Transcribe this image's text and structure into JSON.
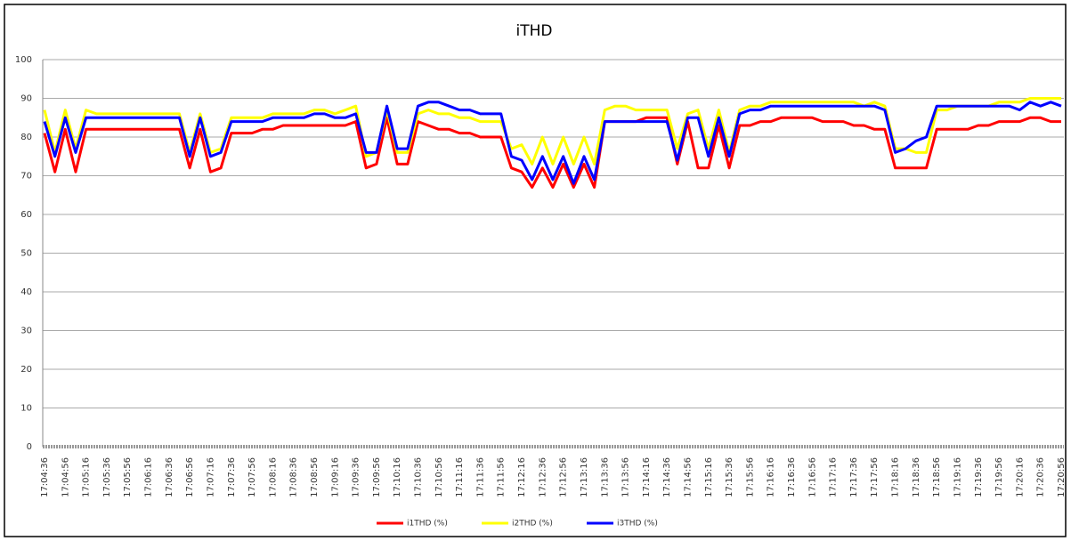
{
  "chart_data": {
    "type": "line",
    "title": "iTHD",
    "categories": [
      "17:04:36",
      null,
      "17:04:56",
      null,
      "17:05:16",
      null,
      "17:05:36",
      null,
      "17:05:56",
      null,
      "17:06:16",
      null,
      "17:06:36",
      null,
      "17:06:56",
      null,
      "17:07:16",
      null,
      "17:07:36",
      null,
      "17:07:56",
      null,
      "17:08:16",
      null,
      "17:08:36",
      null,
      "17:08:56",
      null,
      "17:09:16",
      null,
      "17:09:36",
      null,
      "17:09:56",
      null,
      "17:10:16",
      null,
      "17:10:36",
      null,
      "17:10:56",
      null,
      "17:11:16",
      null,
      "17:11:36",
      null,
      "17:11:56",
      null,
      "17:12:16",
      null,
      "17:12:36",
      null,
      "17:12:56",
      null,
      "17:13:16",
      null,
      "17:13:36",
      null,
      "17:13:56",
      null,
      "17:14:16",
      null,
      "17:14:36",
      null,
      "17:14:56",
      null,
      "17:15:16",
      null,
      "17:15:36",
      null,
      "17:15:56",
      null,
      "17:16:16",
      null,
      "17:16:36",
      null,
      "17:16:56",
      null,
      "17:17:16",
      null,
      "17:17:36",
      null,
      "17:17:56",
      null,
      "17:18:16",
      null,
      "17:18:36",
      null,
      "17:18:56",
      null,
      "17:19:16",
      null,
      "17:19:36",
      null,
      "17:19:56",
      null,
      "17:20:16",
      null,
      "17:20:36",
      null,
      "17:20:56"
    ],
    "series": [
      {
        "name": "i1THD (%)",
        "color": "#ff0000",
        "values": [
          81,
          71,
          82,
          71,
          82,
          82,
          82,
          82,
          82,
          82,
          82,
          82,
          82,
          82,
          72,
          82,
          71,
          72,
          81,
          81,
          81,
          82,
          82,
          83,
          83,
          83,
          83,
          83,
          83,
          83,
          84,
          72,
          73,
          85,
          73,
          73,
          84,
          83,
          82,
          82,
          81,
          81,
          80,
          80,
          80,
          72,
          71,
          67,
          72,
          67,
          73,
          67,
          73,
          67,
          84,
          84,
          84,
          84,
          85,
          85,
          85,
          73,
          84,
          72,
          72,
          83,
          72,
          83,
          83,
          84,
          84,
          85,
          85,
          85,
          85,
          84,
          84,
          84,
          83,
          83,
          82,
          82,
          72,
          72,
          72,
          72,
          82,
          82,
          82,
          82,
          83,
          83,
          84,
          84,
          84,
          85,
          85,
          84,
          84
        ]
      },
      {
        "name": "i2THD (%)",
        "color": "#ffff00",
        "values": [
          87,
          76,
          87,
          77,
          87,
          86,
          86,
          86,
          86,
          86,
          86,
          86,
          86,
          86,
          76,
          86,
          76,
          77,
          85,
          85,
          85,
          85,
          86,
          86,
          86,
          86,
          87,
          87,
          86,
          87,
          88,
          75,
          76,
          87,
          76,
          76,
          86,
          87,
          86,
          86,
          85,
          85,
          84,
          84,
          84,
          77,
          78,
          73,
          80,
          73,
          80,
          73,
          80,
          73,
          87,
          88,
          88,
          87,
          87,
          87,
          87,
          77,
          86,
          87,
          77,
          87,
          76,
          87,
          88,
          88,
          89,
          89,
          89,
          89,
          89,
          89,
          89,
          89,
          89,
          88,
          89,
          88,
          77,
          77,
          76,
          76,
          87,
          87,
          88,
          88,
          88,
          88,
          89,
          89,
          89,
          90,
          90,
          90,
          90
        ]
      },
      {
        "name": "i3THD (%)",
        "color": "#0000ff",
        "values": [
          84,
          75,
          85,
          76,
          85,
          85,
          85,
          85,
          85,
          85,
          85,
          85,
          85,
          85,
          75,
          85,
          75,
          76,
          84,
          84,
          84,
          84,
          85,
          85,
          85,
          85,
          86,
          86,
          85,
          85,
          86,
          76,
          76,
          88,
          77,
          77,
          88,
          89,
          89,
          88,
          87,
          87,
          86,
          86,
          86,
          75,
          74,
          69,
          75,
          69,
          75,
          68,
          75,
          69,
          84,
          84,
          84,
          84,
          84,
          84,
          84,
          74,
          85,
          85,
          75,
          85,
          75,
          86,
          87,
          87,
          88,
          88,
          88,
          88,
          88,
          88,
          88,
          88,
          88,
          88,
          88,
          87,
          76,
          77,
          79,
          80,
          88,
          88,
          88,
          88,
          88,
          88,
          88,
          88,
          87,
          89,
          88,
          89,
          88
        ]
      }
    ],
    "ylim": [
      0,
      100
    ],
    "yticks": [
      0,
      10,
      20,
      30,
      40,
      50,
      60,
      70,
      80,
      90,
      100
    ],
    "grid": true,
    "legend": "bottom"
  }
}
